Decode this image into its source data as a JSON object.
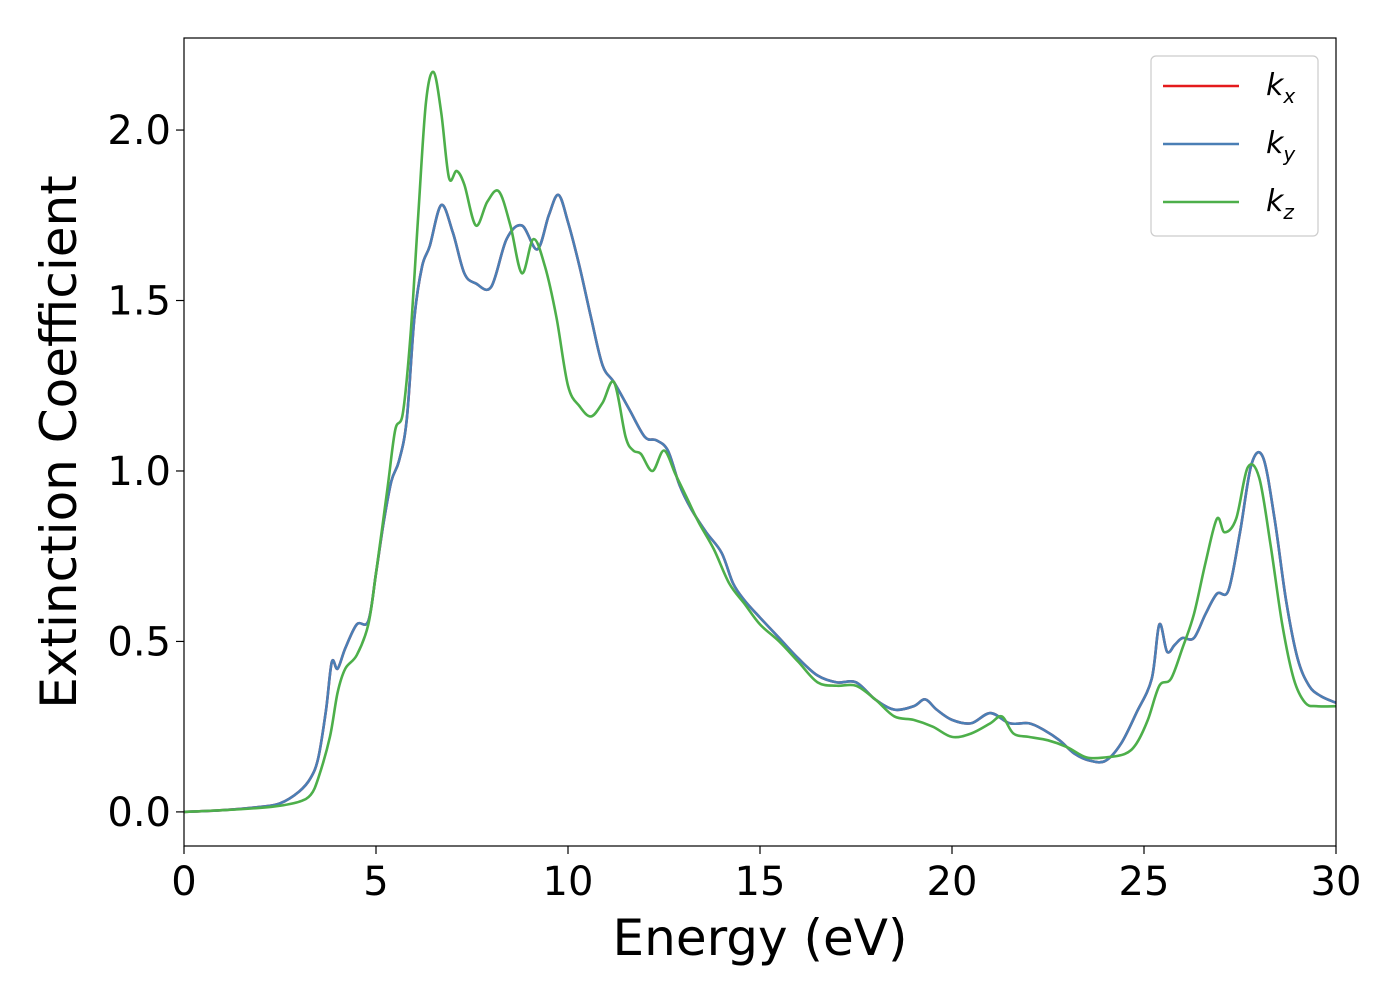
{
  "chart_data": {
    "type": "line",
    "xlabel": "Energy (eV)",
    "ylabel": "Extinction Coefficient",
    "xlim": [
      0,
      30
    ],
    "ylim": [
      -0.1,
      2.27
    ],
    "xticks": [
      "0",
      "5",
      "10",
      "15",
      "20",
      "25",
      "30"
    ],
    "yticks": [
      "0.0",
      "0.5",
      "1.0",
      "1.5",
      "2.0"
    ],
    "grid": false,
    "legend_position": "top-right",
    "series": [
      {
        "name": "kx",
        "label_base": "k",
        "label_sub": "x",
        "color": "#e41a1c",
        "x": [
          0,
          1,
          2,
          2.5,
          3,
          3.3,
          3.5,
          3.7,
          3.85,
          4.0,
          4.2,
          4.5,
          4.8,
          5.0,
          5.2,
          5.4,
          5.6,
          5.8,
          6.0,
          6.2,
          6.4,
          6.7,
          7.0,
          7.3,
          7.6,
          8.0,
          8.4,
          8.8,
          9.2,
          9.5,
          9.75,
          10.0,
          10.3,
          10.6,
          10.9,
          11.2,
          11.6,
          12.0,
          12.3,
          12.6,
          12.9,
          13.2,
          13.6,
          14.0,
          14.3,
          14.6,
          15.0,
          15.5,
          16.0,
          16.5,
          17.0,
          17.5,
          18.0,
          18.5,
          19.0,
          19.3,
          19.6,
          20.0,
          20.5,
          21.0,
          21.5,
          22.0,
          22.4,
          22.8,
          23.2,
          23.6,
          24.0,
          24.4,
          24.8,
          25.2,
          25.4,
          25.6,
          25.8,
          26.0,
          26.3,
          26.6,
          26.9,
          27.2,
          27.5,
          27.8,
          28.1,
          28.4,
          28.7,
          29.0,
          29.3,
          29.6,
          30.0
        ],
        "values": [
          0,
          0.005,
          0.015,
          0.025,
          0.06,
          0.1,
          0.16,
          0.3,
          0.44,
          0.42,
          0.48,
          0.55,
          0.56,
          0.7,
          0.85,
          0.97,
          1.03,
          1.15,
          1.45,
          1.6,
          1.66,
          1.78,
          1.7,
          1.58,
          1.55,
          1.54,
          1.68,
          1.72,
          1.65,
          1.75,
          1.81,
          1.73,
          1.6,
          1.45,
          1.31,
          1.26,
          1.18,
          1.1,
          1.09,
          1.06,
          0.96,
          0.89,
          0.82,
          0.76,
          0.67,
          0.62,
          0.57,
          0.51,
          0.45,
          0.4,
          0.38,
          0.38,
          0.33,
          0.3,
          0.31,
          0.33,
          0.3,
          0.27,
          0.26,
          0.29,
          0.26,
          0.26,
          0.24,
          0.21,
          0.17,
          0.15,
          0.15,
          0.2,
          0.29,
          0.39,
          0.55,
          0.47,
          0.49,
          0.51,
          0.51,
          0.58,
          0.64,
          0.65,
          0.82,
          1.02,
          1.04,
          0.86,
          0.62,
          0.45,
          0.37,
          0.34,
          0.32
        ]
      },
      {
        "name": "ky",
        "label_base": "k",
        "label_sub": "y",
        "color": "#4a7fb5",
        "x": [
          0,
          1,
          2,
          2.5,
          3,
          3.3,
          3.5,
          3.7,
          3.85,
          4.0,
          4.2,
          4.5,
          4.8,
          5.0,
          5.2,
          5.4,
          5.6,
          5.8,
          6.0,
          6.2,
          6.4,
          6.7,
          7.0,
          7.3,
          7.6,
          8.0,
          8.4,
          8.8,
          9.2,
          9.5,
          9.75,
          10.0,
          10.3,
          10.6,
          10.9,
          11.2,
          11.6,
          12.0,
          12.3,
          12.6,
          12.9,
          13.2,
          13.6,
          14.0,
          14.3,
          14.6,
          15.0,
          15.5,
          16.0,
          16.5,
          17.0,
          17.5,
          18.0,
          18.5,
          19.0,
          19.3,
          19.6,
          20.0,
          20.5,
          21.0,
          21.5,
          22.0,
          22.4,
          22.8,
          23.2,
          23.6,
          24.0,
          24.4,
          24.8,
          25.2,
          25.4,
          25.6,
          25.8,
          26.0,
          26.3,
          26.6,
          26.9,
          27.2,
          27.5,
          27.8,
          28.1,
          28.4,
          28.7,
          29.0,
          29.3,
          29.6,
          30.0
        ],
        "values": [
          0,
          0.005,
          0.015,
          0.025,
          0.06,
          0.1,
          0.16,
          0.3,
          0.44,
          0.42,
          0.48,
          0.55,
          0.56,
          0.7,
          0.85,
          0.97,
          1.03,
          1.15,
          1.45,
          1.6,
          1.66,
          1.78,
          1.7,
          1.58,
          1.55,
          1.54,
          1.68,
          1.72,
          1.65,
          1.75,
          1.81,
          1.73,
          1.6,
          1.45,
          1.31,
          1.26,
          1.18,
          1.1,
          1.09,
          1.06,
          0.96,
          0.89,
          0.82,
          0.76,
          0.67,
          0.62,
          0.57,
          0.51,
          0.45,
          0.4,
          0.38,
          0.38,
          0.33,
          0.3,
          0.31,
          0.33,
          0.3,
          0.27,
          0.26,
          0.29,
          0.26,
          0.26,
          0.24,
          0.21,
          0.17,
          0.15,
          0.15,
          0.2,
          0.29,
          0.39,
          0.55,
          0.47,
          0.49,
          0.51,
          0.51,
          0.58,
          0.64,
          0.65,
          0.82,
          1.02,
          1.04,
          0.86,
          0.62,
          0.45,
          0.37,
          0.34,
          0.32
        ]
      },
      {
        "name": "kz",
        "label_base": "k",
        "label_sub": "z",
        "color": "#4daf4a",
        "x": [
          0,
          1,
          2,
          2.5,
          3,
          3.3,
          3.5,
          3.8,
          4.0,
          4.2,
          4.5,
          4.8,
          5.0,
          5.3,
          5.5,
          5.7,
          5.9,
          6.1,
          6.3,
          6.5,
          6.7,
          6.9,
          7.1,
          7.3,
          7.6,
          7.9,
          8.2,
          8.5,
          8.8,
          9.1,
          9.4,
          9.7,
          10.0,
          10.3,
          10.6,
          10.9,
          11.2,
          11.5,
          11.7,
          11.9,
          12.2,
          12.5,
          12.8,
          13.1,
          13.4,
          13.8,
          14.2,
          14.6,
          15.0,
          15.5,
          16.0,
          16.5,
          17.0,
          17.5,
          18.0,
          18.5,
          19.0,
          19.5,
          20.0,
          20.5,
          21.0,
          21.3,
          21.6,
          22.0,
          22.5,
          23.0,
          23.5,
          24.0,
          24.5,
          24.8,
          25.1,
          25.4,
          25.7,
          26.0,
          26.3,
          26.6,
          26.9,
          27.1,
          27.4,
          27.7,
          28.0,
          28.3,
          28.6,
          28.9,
          29.2,
          29.5,
          30.0
        ],
        "values": [
          0,
          0.005,
          0.012,
          0.018,
          0.03,
          0.05,
          0.1,
          0.22,
          0.35,
          0.42,
          0.46,
          0.55,
          0.7,
          0.95,
          1.12,
          1.17,
          1.4,
          1.75,
          2.08,
          2.17,
          2.05,
          1.86,
          1.88,
          1.84,
          1.72,
          1.79,
          1.82,
          1.72,
          1.58,
          1.68,
          1.6,
          1.45,
          1.25,
          1.19,
          1.16,
          1.2,
          1.26,
          1.1,
          1.06,
          1.05,
          1.0,
          1.06,
          0.99,
          0.92,
          0.85,
          0.77,
          0.67,
          0.61,
          0.55,
          0.5,
          0.44,
          0.38,
          0.37,
          0.37,
          0.33,
          0.28,
          0.27,
          0.25,
          0.22,
          0.23,
          0.26,
          0.28,
          0.23,
          0.22,
          0.21,
          0.19,
          0.16,
          0.16,
          0.17,
          0.2,
          0.27,
          0.37,
          0.39,
          0.48,
          0.58,
          0.73,
          0.86,
          0.82,
          0.86,
          1.01,
          0.98,
          0.78,
          0.55,
          0.39,
          0.32,
          0.31,
          0.31
        ]
      }
    ]
  }
}
